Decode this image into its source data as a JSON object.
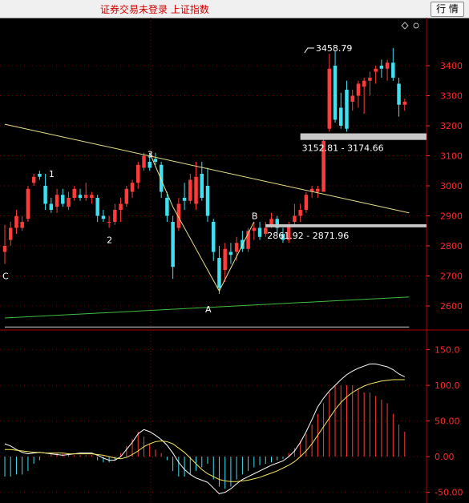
{
  "window": {
    "title": "证券交易未登录  上证指数",
    "quote_button": "行 情"
  },
  "chart_data": {
    "type": "candlestick",
    "price_axis": {
      "ylim": [
        2520,
        3560
      ],
      "ticks": [
        {
          "v": 3400,
          "label": "3400"
        },
        {
          "v": 3300,
          "label": "3300"
        },
        {
          "v": 3200,
          "label": "3200"
        },
        {
          "v": 3100,
          "label": "3100"
        },
        {
          "v": 3000,
          "label": "3000"
        },
        {
          "v": 2900,
          "label": "2900"
        },
        {
          "v": 2800,
          "label": "2800"
        },
        {
          "v": 2700,
          "label": "2700"
        },
        {
          "v": 2600,
          "label": "2600"
        }
      ]
    },
    "macd_axis": {
      "ylim": [
        -65,
        172
      ],
      "ticks": [
        {
          "v": 150,
          "label": "150.0"
        },
        {
          "v": 100,
          "label": "100.0"
        },
        {
          "v": 50,
          "label": "50.00"
        },
        {
          "v": 0,
          "label": "0.00"
        },
        {
          "v": -50,
          "label": "-50.00"
        }
      ]
    },
    "candles": [
      [
        2780,
        2870,
        2740,
        2800
      ],
      [
        2820,
        2880,
        2800,
        2860
      ],
      [
        2860,
        2920,
        2840,
        2900
      ],
      [
        2860,
        2900,
        2850,
        2880
      ],
      [
        2890,
        3000,
        2880,
        2990
      ],
      [
        3010,
        3040,
        3000,
        3030
      ],
      [
        3040,
        3050,
        3020,
        3030
      ],
      [
        3000,
        3040,
        2920,
        2940
      ],
      [
        2940,
        2960,
        2910,
        2920
      ],
      [
        2930,
        2990,
        2910,
        2970
      ],
      [
        2970,
        2990,
        2930,
        2940
      ],
      [
        2930,
        2980,
        2920,
        2960
      ],
      [
        2960,
        3000,
        2950,
        2990
      ],
      [
        2970,
        2990,
        2950,
        2960
      ],
      [
        2960,
        3010,
        2950,
        2970
      ],
      [
        2960,
        2980,
        2940,
        2970
      ],
      [
        2960,
        2970,
        2880,
        2900
      ],
      [
        2900,
        2920,
        2880,
        2890
      ],
      [
        2880,
        2900,
        2860,
        2880
      ],
      [
        2880,
        2940,
        2870,
        2920
      ],
      [
        2920,
        2960,
        2880,
        2940
      ],
      [
        2940,
        3000,
        2930,
        2990
      ],
      [
        2980,
        3020,
        2960,
        3010
      ],
      [
        3010,
        3080,
        2990,
        3070
      ],
      [
        3060,
        3110,
        3050,
        3100
      ],
      [
        3080,
        3110,
        3050,
        3060
      ],
      [
        3090,
        3110,
        3070,
        3080
      ],
      [
        3070,
        3080,
        2960,
        2980
      ],
      [
        2960,
        2980,
        2880,
        2900
      ],
      [
        2880,
        2900,
        2690,
        2730
      ],
      [
        2860,
        2960,
        2850,
        2940
      ],
      [
        2960,
        3010,
        2920,
        2950
      ],
      [
        2950,
        3040,
        2940,
        3020
      ],
      [
        2940,
        3080,
        2920,
        3030
      ],
      [
        3040,
        3080,
        2950,
        2960
      ],
      [
        3000,
        3060,
        2880,
        2900
      ],
      [
        2880,
        2890,
        2750,
        2780
      ],
      [
        2760,
        2800,
        2640,
        2660
      ],
      [
        2720,
        2810,
        2680,
        2790
      ],
      [
        2780,
        2810,
        2740,
        2770
      ],
      [
        2780,
        2830,
        2750,
        2810
      ],
      [
        2820,
        2850,
        2780,
        2790
      ],
      [
        2790,
        2860,
        2780,
        2850
      ],
      [
        2850,
        2880,
        2820,
        2860
      ],
      [
        2860,
        2880,
        2820,
        2830
      ],
      [
        2840,
        2880,
        2830,
        2860
      ],
      [
        2870,
        2910,
        2860,
        2890
      ],
      [
        2890,
        2900,
        2840,
        2860
      ],
      [
        2840,
        2860,
        2810,
        2820
      ],
      [
        2820,
        2880,
        2810,
        2870
      ],
      [
        2880,
        2940,
        2870,
        2900
      ],
      [
        2900,
        2940,
        2880,
        2920
      ],
      [
        2920,
        2980,
        2910,
        2970
      ],
      [
        2980,
        3000,
        2960,
        2990
      ],
      [
        2980,
        3000,
        2960,
        2990
      ],
      [
        2980,
        3160,
        2980,
        3150
      ],
      [
        3190,
        3440,
        3180,
        3390
      ],
      [
        3400,
        3450,
        3210,
        3220
      ],
      [
        3260,
        3310,
        3190,
        3200
      ],
      [
        3320,
        3350,
        3180,
        3190
      ],
      [
        3280,
        3320,
        3250,
        3300
      ],
      [
        3300,
        3350,
        3260,
        3340
      ],
      [
        3330,
        3360,
        3240,
        3350
      ],
      [
        3350,
        3380,
        3300,
        3360
      ],
      [
        3380,
        3400,
        3340,
        3390
      ],
      [
        3400,
        3420,
        3360,
        3390
      ],
      [
        3390,
        3420,
        3350,
        3410
      ],
      [
        3410,
        3459,
        3350,
        3360
      ],
      [
        3340,
        3360,
        3230,
        3270
      ],
      [
        3270,
        3290,
        3250,
        3280
      ]
    ],
    "macd_bars": [
      -28,
      -28,
      -25,
      -25,
      -20,
      -10,
      -5,
      0,
      5,
      5,
      4,
      3,
      2,
      2,
      2,
      2,
      -5,
      -8,
      -8,
      -5,
      5,
      15,
      25,
      35,
      28,
      18,
      10,
      5,
      -5,
      -20,
      -28,
      -28,
      -25,
      -20,
      -15,
      -10,
      -32,
      -42,
      -45,
      -42,
      -32,
      -25,
      -20,
      -15,
      -12,
      -10,
      -8,
      -5,
      -3,
      5,
      12,
      22,
      32,
      45,
      60,
      75,
      90,
      100,
      100,
      100,
      100,
      95,
      90,
      90,
      85,
      80,
      75,
      60,
      45,
      35
    ],
    "dif_line": [
      18,
      15,
      10,
      6,
      4,
      5,
      6,
      5,
      4,
      3,
      2,
      3,
      4,
      5,
      5,
      5,
      2,
      -2,
      -5,
      -5,
      0,
      10,
      20,
      32,
      38,
      35,
      30,
      24,
      16,
      5,
      -8,
      -18,
      -25,
      -30,
      -33,
      -36,
      -44,
      -52,
      -50,
      -45,
      -38,
      -32,
      -28,
      -24,
      -20,
      -16,
      -12,
      -9,
      -6,
      0,
      8,
      20,
      35,
      52,
      70,
      82,
      92,
      100,
      108,
      115,
      120,
      124,
      127,
      130,
      130,
      128,
      126,
      122,
      116,
      112
    ],
    "dea_line": [
      10,
      10,
      9,
      8,
      7,
      6,
      6,
      5,
      5,
      5,
      5,
      4,
      4,
      4,
      4,
      4,
      3,
      2,
      0,
      -2,
      -3,
      -1,
      3,
      8,
      14,
      18,
      21,
      22,
      21,
      18,
      12,
      6,
      -2,
      -10,
      -18,
      -24,
      -28,
      -32,
      -34,
      -35,
      -35,
      -34,
      -33,
      -31,
      -29,
      -26,
      -23,
      -20,
      -16,
      -12,
      -7,
      0,
      8,
      18,
      30,
      42,
      54,
      66,
      76,
      84,
      90,
      95,
      99,
      102,
      104,
      106,
      107,
      108,
      108,
      108
    ],
    "trendlines": [
      {
        "from": [
          0,
          3205
        ],
        "to": [
          67,
          2910
        ],
        "color": "#e6e08a"
      },
      {
        "from": [
          0,
          2560
        ],
        "to": [
          67,
          2630
        ],
        "color": "#3fbf3f"
      },
      {
        "from": [
          0,
          2530
        ],
        "to": [
          67,
          2530
        ],
        "color": "#cfcfcf"
      }
    ],
    "wave_labels": [
      {
        "label": "1",
        "i": 8,
        "price": 3040
      },
      {
        "label": "2",
        "i": 18,
        "price": 2820
      },
      {
        "label": "3",
        "i": 25,
        "price": 3105
      },
      {
        "label": "C",
        "i": 0,
        "price": 2700
      },
      {
        "label": "A",
        "i": 35,
        "price": 2590
      },
      {
        "label": "B",
        "i": 43,
        "price": 2900
      }
    ],
    "wave_path": [
      [
        25,
        3110
      ],
      [
        29,
        2930
      ],
      [
        37,
        2650
      ],
      [
        43,
        2880
      ]
    ],
    "ranges": [
      {
        "text": "3152.81 - 3174.66",
        "low": 3152.81,
        "high": 3174.66,
        "start_i": 51
      },
      {
        "text": "2861.92 - 2871.96",
        "low": 2861.92,
        "high": 2871.96,
        "start_i": 45
      }
    ],
    "high_marker": {
      "text": "3458.79",
      "price": 3458.79,
      "i": 52
    }
  }
}
